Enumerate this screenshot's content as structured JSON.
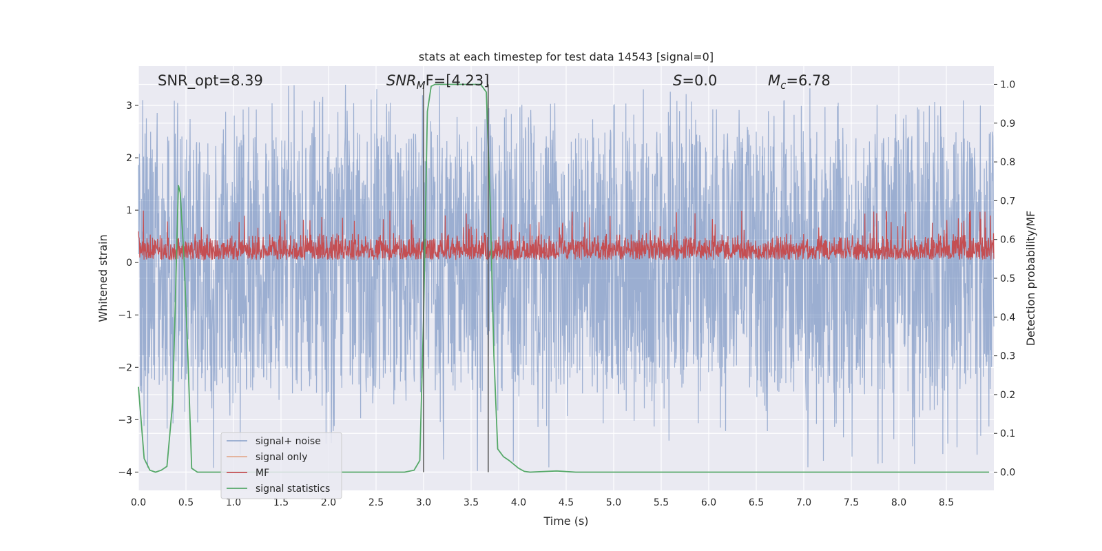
{
  "chart_data": {
    "type": "line",
    "title": "stats at each timestep for test data 14543 [signal=0]",
    "xlabel": "Time (s)",
    "ylabel": "Whitened strain",
    "ylabel_right": "Detection probability/MF",
    "xlim": [
      0.0,
      9.0
    ],
    "ylim": [
      -4.35,
      3.75
    ],
    "ylim_right": [
      -0.047,
      1.047
    ],
    "x_ticks": [
      "0.0",
      "0.5",
      "1.0",
      "1.5",
      "2.0",
      "2.5",
      "3.0",
      "3.5",
      "4.0",
      "4.5",
      "5.0",
      "5.5",
      "6.0",
      "6.5",
      "7.0",
      "7.5",
      "8.0",
      "8.5"
    ],
    "y_ticks": [
      "3",
      "2",
      "1",
      "0",
      "−1",
      "−2",
      "−3",
      "−4"
    ],
    "y_ticks_right": [
      "1.0",
      "0.9",
      "0.8",
      "0.7",
      "0.6",
      "0.5",
      "0.4",
      "0.3",
      "0.2",
      "0.1",
      "0.0"
    ],
    "grid": true,
    "legend_position": "lower-left",
    "annotations": {
      "snr_opt": "SNR_opt=8.39",
      "snr_mf_base": "SNR",
      "snr_mf_sub": "M",
      "snr_mf_rest": "F=[4.23]",
      "s_var": "S",
      "s_rest": "=0.0",
      "mc_base": "M",
      "mc_sub": "c",
      "mc_rest": "=6.78"
    },
    "vertical_lines": [
      3.0,
      3.68
    ],
    "series": [
      {
        "name": "signal+ noise",
        "color": "#4c72b0",
        "axis": "left",
        "noise_envelope": {
          "x_range": [
            0.0,
            9.0
          ],
          "typical_min": -2.5,
          "typical_max": 2.5,
          "extreme_min": -4.0,
          "extreme_max": 3.4
        }
      },
      {
        "name": "signal only",
        "color": "#dd8452",
        "axis": "left",
        "x": [],
        "y": []
      },
      {
        "name": "MF",
        "color": "#c44e52",
        "axis": "left",
        "noise_envelope": {
          "x_range": [
            0.0,
            9.0
          ],
          "baseline": 0.05,
          "typical_max": 0.6,
          "extreme_max": 1.0
        }
      },
      {
        "name": "signal statistics",
        "color": "#55a868",
        "axis": "right",
        "x": [
          0.0,
          0.06,
          0.12,
          0.18,
          0.24,
          0.3,
          0.36,
          0.42,
          0.44,
          0.48,
          0.52,
          0.56,
          0.62,
          0.8,
          1.5,
          2.0,
          2.5,
          2.8,
          2.9,
          2.96,
          3.0,
          3.04,
          3.08,
          3.12,
          3.2,
          3.4,
          3.6,
          3.66,
          3.7,
          3.74,
          3.78,
          3.84,
          3.9,
          4.0,
          4.06,
          4.12,
          4.2,
          4.4,
          4.6,
          5.0,
          6.0,
          7.0,
          8.0,
          8.95
        ],
        "y": [
          0.22,
          0.035,
          0.005,
          0.0,
          0.005,
          0.015,
          0.18,
          0.74,
          0.72,
          0.55,
          0.3,
          0.01,
          0.0,
          0.0,
          0.0,
          0.0,
          0.0,
          0.0,
          0.005,
          0.03,
          0.4,
          0.93,
          0.995,
          1.0,
          1.0,
          1.0,
          1.0,
          0.98,
          0.7,
          0.3,
          0.06,
          0.04,
          0.03,
          0.01,
          0.002,
          0.0,
          0.001,
          0.003,
          0.0,
          0.0,
          0.0,
          0.0,
          0.0,
          0.0
        ]
      }
    ]
  }
}
